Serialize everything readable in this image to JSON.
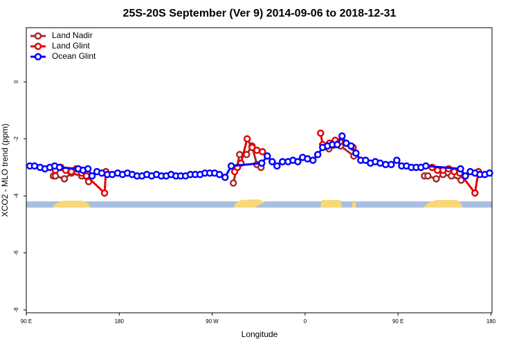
{
  "chart_data": {
    "type": "line",
    "title": "25S-20S September (Ver 9)   2014-09-06 to 2018-12-31",
    "x_label": "Longitude",
    "y_label": "XCO2 - MLO trend (ppm)",
    "xlim": [
      90,
      541
    ],
    "ylim": [
      -8.1,
      1.9
    ],
    "xticks": [
      {
        "value": 90,
        "label": "90 E"
      },
      180,
      {
        "value": 270,
        "label": "90 W"
      },
      {
        "value": 360,
        "label": "0"
      },
      {
        "value": 450,
        "label": "90 E"
      },
      {
        "value": 540,
        "label": "180"
      }
    ],
    "yticks": [
      0,
      -2,
      -4,
      -6,
      -8
    ],
    "legend": "top-left",
    "series": [
      {
        "name": "Land Nadir",
        "color": "#a52a2a",
        "x": [
          116.2,
          118.2,
          126.9,
          133.6,
          143.6,
          150.4,
          null,
          290.5,
          296.6,
          303.3,
          308.6,
          313.3,
          317.3,
          null,
          383,
          394.4,
          407.2,
          null,
          475.6,
          478.9,
          487,
          493.6,
          501.7,
          511.1
        ],
        "values": [
          -3.3,
          -3.3,
          -3.4,
          -3.2,
          -3.3,
          -3.5,
          null,
          -3.55,
          -2.55,
          -2.55,
          -2.25,
          -2.9,
          -3.0,
          null,
          -2.35,
          -2.25,
          -2.6,
          null,
          -3.3,
          -3.3,
          -3.4,
          -3.25,
          -3.3,
          -3.45
        ]
      },
      {
        "name": "Land Glint",
        "color": "#e60000",
        "x": [
          118.2,
          123.5,
          128.2,
          133.6,
          138.3,
          143.6,
          148.3,
          165.8,
          167.1,
          null,
          291.8,
          294.5,
          297.9,
          303.9,
          308.6,
          313.3,
          318.7,
          null,
          375,
          377,
          383.7,
          389.1,
          393.8,
          406.5,
          null,
          483,
          488.2,
          493.6,
          499,
          504.4,
          509.8,
          524.5,
          527.8
        ],
        "values": [
          -3.1,
          -3.0,
          -3.1,
          -3.15,
          -3.05,
          -3.2,
          -3.3,
          -3.9,
          -3.15,
          null,
          -3.15,
          -3.0,
          -2.85,
          -2.0,
          -2.3,
          -2.4,
          -2.45,
          null,
          -1.8,
          -2.2,
          -2.15,
          -2.05,
          -2.1,
          -2.3,
          null,
          -3.0,
          -3.1,
          -3.1,
          -3.05,
          -3.15,
          -3.2,
          -3.9,
          -3.15
        ]
      },
      {
        "name": "Ocean Glint",
        "color": "#0000ff",
        "x": [
          93.4,
          98,
          103.4,
          108.1,
          112.8,
          117.5,
          122.2,
          140.3,
          145,
          149.7,
          153.7,
          158.4,
          163.1,
          168.5,
          173.2,
          178.5,
          183.2,
          187.9,
          192.6,
          197.3,
          202,
          206.7,
          211.4,
          216.1,
          220.8,
          225.5,
          230.2,
          234.9,
          239.5,
          244.2,
          248.9,
          253.6,
          258.3,
          263,
          267.7,
          272.4,
          277.1,
          282.5,
          288.5,
          318,
          323.4,
          328.1,
          332.8,
          338.1,
          343.5,
          348.2,
          352.9,
          357.6,
          362.3,
          367.6,
          372.3,
          377,
          381.7,
          386.4,
          391.1,
          395.8,
          399.8,
          404.5,
          409.2,
          413.9,
          418.6,
          423.3,
          428,
          432.7,
          438,
          443.4,
          448.8,
          453.5,
          458.2,
          462.9,
          467.6,
          472.2,
          476.9,
          510.5,
          515.2,
          519.9,
          524.6,
          529.3,
          534,
          538.6
        ],
        "values": [
          -2.95,
          -2.95,
          -3.0,
          -3.05,
          -3.0,
          -2.95,
          -3.0,
          -3.05,
          -3.1,
          -3.05,
          -3.3,
          -3.15,
          -3.2,
          -3.25,
          -3.25,
          -3.2,
          -3.25,
          -3.2,
          -3.25,
          -3.3,
          -3.3,
          -3.25,
          -3.3,
          -3.25,
          -3.3,
          -3.3,
          -3.25,
          -3.3,
          -3.3,
          -3.3,
          -3.25,
          -3.25,
          -3.25,
          -3.2,
          -3.2,
          -3.2,
          -3.25,
          -3.35,
          -2.95,
          -2.85,
          -2.6,
          -2.8,
          -2.95,
          -2.8,
          -2.8,
          -2.75,
          -2.8,
          -2.65,
          -2.7,
          -2.75,
          -2.55,
          -2.3,
          -2.25,
          -2.2,
          -2.2,
          -1.9,
          -2.15,
          -2.25,
          -2.5,
          -2.75,
          -2.75,
          -2.85,
          -2.8,
          -2.85,
          -2.9,
          -2.9,
          -2.75,
          -2.95,
          -2.95,
          -3.0,
          -3.0,
          -3.0,
          -2.95,
          -3.05,
          -3.3,
          -3.15,
          -3.2,
          -3.25,
          -3.25,
          -3.2
        ]
      }
    ]
  }
}
